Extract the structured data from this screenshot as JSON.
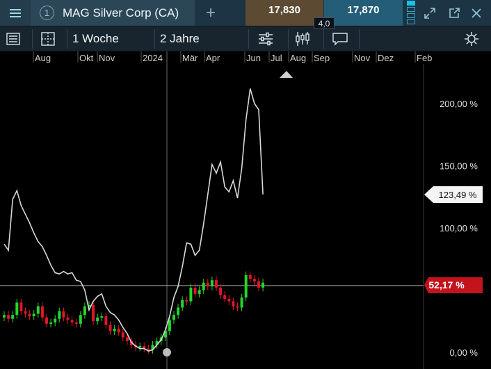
{
  "topbar": {
    "tab_number": "1",
    "instrument": "MAG Silver Corp (CA)",
    "add_tab": "+",
    "sell_price": "17,830",
    "buy_price": "17,870",
    "spread": "4,0"
  },
  "toolbar": {
    "interval": "1 Woche",
    "range": "2 Jahre"
  },
  "chart_data": {
    "type": "line",
    "title": "",
    "xlabel": "",
    "ylabel": "",
    "x_ticks": [
      "Aug",
      "Okt",
      "Nov",
      "2024",
      "Mär",
      "Apr",
      "Jun",
      "Jul",
      "Aug",
      "Sep",
      "Nov",
      "Dez",
      "Feb"
    ],
    "y_ticks": [
      "0,00 %",
      "100,00 %",
      "150,00 %",
      "200,00 %"
    ],
    "ylim": [
      -5,
      220
    ],
    "grid": false,
    "current_value_label": "123,49 %",
    "reference_label": "52,17 %",
    "reference_value": 52.17,
    "series": [
      {
        "color": "#d9d9d9",
        "x": [
          0,
          1,
          2,
          3,
          4,
          5,
          6,
          7,
          8,
          9,
          10,
          11,
          12,
          13,
          14,
          15,
          16,
          17,
          18,
          19,
          20,
          21,
          22,
          23,
          24,
          25,
          26,
          27,
          28,
          29,
          30,
          31,
          32,
          33,
          34,
          35,
          36,
          37,
          38,
          39,
          40,
          41,
          42,
          43,
          44,
          45,
          46,
          47,
          48,
          49,
          50,
          51,
          52,
          53,
          54,
          55,
          56,
          57,
          58,
          59,
          60,
          61,
          62,
          63,
          64,
          65
        ],
        "values": [
          87,
          82,
          123,
          130,
          118,
          111,
          104,
          96,
          89,
          85,
          78,
          70,
          64,
          63,
          65,
          63,
          64,
          58,
          57,
          50,
          34,
          41,
          45,
          47,
          37,
          32,
          30,
          26,
          20,
          15,
          8,
          5,
          3,
          3,
          1,
          2,
          6,
          10,
          18,
          29,
          44,
          53,
          69,
          88,
          87,
          78,
          82,
          103,
          127,
          151,
          144,
          153,
          133,
          129,
          138,
          124,
          148,
          187,
          212,
          200,
          195,
          127,
          null,
          null,
          null,
          null
        ]
      },
      {
        "name": "",
        "type": "candlestick",
        "color_up": "#23d72b",
        "color_down": "#e0152a",
        "close_pct": [
          30,
          27,
          30,
          40,
          33,
          31,
          29,
          31,
          37,
          28,
          23,
          24,
          27,
          33,
          28,
          26,
          24,
          23,
          30,
          37,
          38,
          25,
          28,
          29,
          22,
          17,
          19,
          16,
          12,
          9,
          6,
          4,
          5,
          3,
          2,
          6,
          9,
          12,
          17,
          26,
          30,
          36,
          42,
          41,
          52,
          47,
          50,
          56,
          53,
          58,
          52,
          46,
          43,
          41,
          37,
          36,
          44,
          62,
          59,
          57,
          52,
          56,
          null,
          null,
          null,
          null
        ]
      }
    ]
  }
}
